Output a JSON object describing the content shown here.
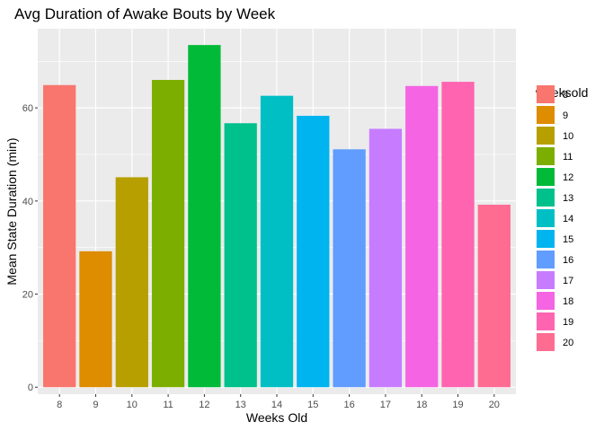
{
  "chart_data": {
    "type": "bar",
    "title": "Avg Duration of Awake Bouts by Week",
    "xlabel": "Weeks Old",
    "ylabel": "Mean State Duration (min)",
    "categories": [
      "8",
      "9",
      "10",
      "11",
      "12",
      "13",
      "14",
      "15",
      "16",
      "17",
      "18",
      "19",
      "20"
    ],
    "values": [
      64.9,
      29.2,
      45.1,
      66.0,
      73.5,
      56.7,
      62.6,
      58.3,
      51.1,
      55.5,
      64.7,
      65.6,
      39.2
    ],
    "colors": [
      "#F8766D",
      "#DE8C00",
      "#B79F00",
      "#7CAE00",
      "#00BA38",
      "#00C08B",
      "#00BFC4",
      "#00B4F0",
      "#619CFF",
      "#C77CFF",
      "#F564E3",
      "#FF64B0",
      "#FF6C91"
    ],
    "ylim": [
      -1.5,
      77
    ],
    "yticks": [
      0,
      20,
      40,
      60
    ],
    "grid": true,
    "legend": {
      "title": "weeksold",
      "placement": "right",
      "labels": [
        "8",
        "9",
        "10",
        "11",
        "12",
        "13",
        "14",
        "15",
        "16",
        "17",
        "18",
        "19",
        "20"
      ]
    }
  }
}
